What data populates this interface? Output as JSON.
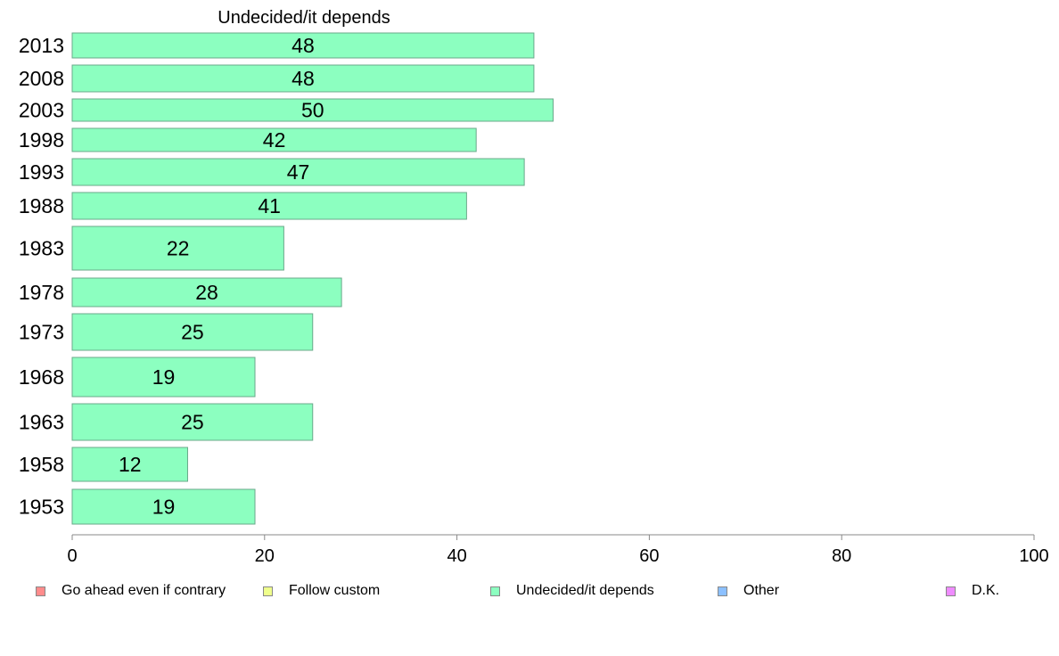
{
  "chart_data": {
    "type": "bar",
    "orientation": "horizontal",
    "title": "Undecided/it depends",
    "categories": [
      "2013",
      "2008",
      "2003",
      "1998",
      "1993",
      "1988",
      "1983",
      "1978",
      "1973",
      "1968",
      "1963",
      "1958",
      "1953"
    ],
    "series": [
      {
        "name": "Undecided/it depends",
        "color": "#8cffc0",
        "values": [
          48,
          48,
          50,
          42,
          47,
          41,
          22,
          28,
          25,
          19,
          25,
          12,
          19
        ]
      }
    ],
    "xlim": [
      0,
      100
    ],
    "x_ticks": [
      "0",
      "20",
      "40",
      "60",
      "80",
      "100"
    ],
    "grid": false,
    "legend_position": "bottom",
    "legend": [
      {
        "label": "Go ahead even if contrary",
        "color": "#ff8c8c"
      },
      {
        "label": "Follow custom",
        "color": "#efff8c"
      },
      {
        "label": "Undecided/it depends",
        "color": "#8cffc0"
      },
      {
        "label": "Other",
        "color": "#8cc0ff"
      },
      {
        "label": "D.K.",
        "color": "#ef8cff"
      }
    ]
  }
}
